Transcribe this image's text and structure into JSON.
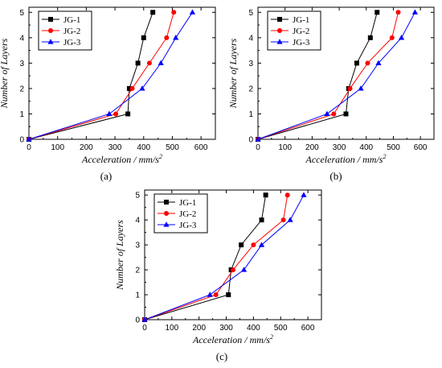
{
  "chart_data": [
    {
      "id": "a",
      "type": "line",
      "caption": "(a)",
      "xlabel_base": "Acceleration / mm/s",
      "xlabel_sup": "2",
      "ylabel": "Number of Layers",
      "xlim": [
        0,
        650
      ],
      "ylim": [
        0,
        5.2
      ],
      "xticks": [
        0,
        100,
        200,
        300,
        400,
        500,
        600
      ],
      "yticks": [
        0,
        1,
        2,
        3,
        4,
        5
      ],
      "legend_position": "top-left",
      "series": [
        {
          "name": "JG-1",
          "color": "#000000",
          "marker": "square",
          "points": [
            [
              0,
              0
            ],
            [
              345,
              1
            ],
            [
              350,
              2
            ],
            [
              380,
              3
            ],
            [
              400,
              4
            ],
            [
              432,
              5
            ]
          ]
        },
        {
          "name": "JG-2",
          "color": "#ff0000",
          "marker": "circle",
          "points": [
            [
              0,
              0
            ],
            [
              303,
              1
            ],
            [
              360,
              2
            ],
            [
              420,
              3
            ],
            [
              480,
              4
            ],
            [
              505,
              5
            ]
          ]
        },
        {
          "name": "JG-3",
          "color": "#0000ff",
          "marker": "triangle",
          "points": [
            [
              0,
              0
            ],
            [
              280,
              1
            ],
            [
              395,
              2
            ],
            [
              460,
              3
            ],
            [
              512,
              4
            ],
            [
              570,
              5
            ]
          ]
        }
      ]
    },
    {
      "id": "b",
      "type": "line",
      "caption": "(b)",
      "xlabel_base": "Acceleration / mm/s",
      "xlabel_sup": "2",
      "ylabel": "Number of Layers",
      "xlim": [
        0,
        650
      ],
      "ylim": [
        0,
        5.2
      ],
      "xticks": [
        0,
        100,
        200,
        300,
        400,
        500,
        600
      ],
      "yticks": [
        0,
        1,
        2,
        3,
        4,
        5
      ],
      "legend_position": "top-left",
      "series": [
        {
          "name": "JG-1",
          "color": "#000000",
          "marker": "square",
          "points": [
            [
              0,
              0
            ],
            [
              325,
              1
            ],
            [
              335,
              2
            ],
            [
              365,
              3
            ],
            [
              415,
              4
            ],
            [
              440,
              5
            ]
          ]
        },
        {
          "name": "JG-2",
          "color": "#ff0000",
          "marker": "circle",
          "points": [
            [
              0,
              0
            ],
            [
              280,
              1
            ],
            [
              340,
              2
            ],
            [
              405,
              3
            ],
            [
              495,
              4
            ],
            [
              518,
              5
            ]
          ]
        },
        {
          "name": "JG-3",
          "color": "#0000ff",
          "marker": "triangle",
          "points": [
            [
              0,
              0
            ],
            [
              255,
              1
            ],
            [
              380,
              2
            ],
            [
              445,
              3
            ],
            [
              530,
              4
            ],
            [
              580,
              5
            ]
          ]
        }
      ]
    },
    {
      "id": "c",
      "type": "line",
      "caption": "(c)",
      "xlabel_base": "Acceleration / mm/s",
      "xlabel_sup": "2",
      "ylabel": "Number of Layers",
      "xlim": [
        0,
        650
      ],
      "ylim": [
        0,
        5.2
      ],
      "xticks": [
        0,
        100,
        200,
        300,
        400,
        500,
        600
      ],
      "yticks": [
        0,
        1,
        2,
        3,
        4,
        5
      ],
      "legend_position": "top-left",
      "series": [
        {
          "name": "JG-1",
          "color": "#000000",
          "marker": "square",
          "points": [
            [
              0,
              0
            ],
            [
              308,
              1
            ],
            [
              318,
              2
            ],
            [
              355,
              3
            ],
            [
              430,
              4
            ],
            [
              445,
              5
            ]
          ]
        },
        {
          "name": "JG-2",
          "color": "#ff0000",
          "marker": "circle",
          "points": [
            [
              0,
              0
            ],
            [
              262,
              1
            ],
            [
              325,
              2
            ],
            [
              400,
              3
            ],
            [
              510,
              4
            ],
            [
              525,
              5
            ]
          ]
        },
        {
          "name": "JG-3",
          "color": "#0000ff",
          "marker": "triangle",
          "points": [
            [
              0,
              0
            ],
            [
              240,
              1
            ],
            [
              365,
              2
            ],
            [
              430,
              3
            ],
            [
              535,
              4
            ],
            [
              585,
              5
            ]
          ]
        }
      ]
    }
  ]
}
